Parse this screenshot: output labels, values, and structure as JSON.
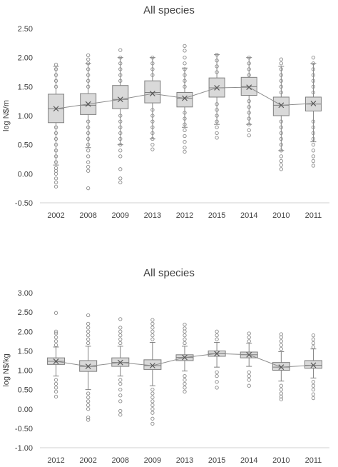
{
  "chart_data": [
    {
      "type": "box",
      "title": "All species",
      "ylabel": "log N$/m",
      "ylim": [
        -0.5,
        2.5
      ],
      "ytick_step": 0.5,
      "yticks": [
        "-0.50",
        "0.00",
        "0.50",
        "1.00",
        "1.50",
        "2.00",
        "2.50"
      ],
      "grid": false,
      "mean_line": true,
      "categories": [
        "2002",
        "2008",
        "2009",
        "2013",
        "2012",
        "2015",
        "2014",
        "2010",
        "2011"
      ],
      "boxes": [
        {
          "q1": 0.88,
          "median": 1.12,
          "q3": 1.37,
          "mean": 1.12,
          "whisker_low": 0.15,
          "whisker_high": 1.85,
          "outliers": [
            -0.22,
            -0.15,
            -0.08,
            0.0,
            0.05,
            0.1,
            0.2,
            0.3,
            0.4,
            0.5,
            0.6,
            0.7,
            0.8,
            1.5,
            1.6,
            1.7,
            1.8,
            1.88
          ]
        },
        {
          "q1": 1.02,
          "median": 1.18,
          "q3": 1.38,
          "mean": 1.2,
          "whisker_low": 0.45,
          "whisker_high": 1.9,
          "outliers": [
            -0.25,
            0.05,
            0.12,
            0.2,
            0.3,
            0.4,
            0.5,
            0.6,
            0.7,
            0.8,
            0.9,
            1.5,
            1.6,
            1.7,
            1.8,
            1.9,
            1.97,
            2.04
          ]
        },
        {
          "q1": 1.12,
          "median": 1.28,
          "q3": 1.52,
          "mean": 1.28,
          "whisker_low": 0.5,
          "whisker_high": 2.0,
          "outliers": [
            -0.15,
            -0.08,
            0.08,
            0.3,
            0.4,
            0.5,
            0.6,
            0.7,
            0.8,
            0.9,
            1.0,
            1.6,
            1.7,
            1.8,
            1.9,
            2.0,
            2.13
          ]
        },
        {
          "q1": 1.22,
          "median": 1.4,
          "q3": 1.6,
          "mean": 1.38,
          "whisker_low": 0.6,
          "whisker_high": 2.0,
          "outliers": [
            0.42,
            0.5,
            0.6,
            0.7,
            0.8,
            0.9,
            1.0,
            1.1,
            1.7,
            1.8,
            1.9,
            2.0
          ]
        },
        {
          "q1": 1.15,
          "median": 1.3,
          "q3": 1.4,
          "mean": 1.3,
          "whisker_low": 0.8,
          "whisker_high": 1.82,
          "outliers": [
            0.38,
            0.45,
            0.55,
            0.65,
            0.75,
            0.85,
            0.95,
            1.05,
            1.5,
            1.6,
            1.7,
            1.8,
            1.9,
            2.0,
            2.12,
            2.2
          ]
        },
        {
          "q1": 1.32,
          "median": 1.48,
          "q3": 1.65,
          "mean": 1.48,
          "whisker_low": 0.85,
          "whisker_high": 2.05,
          "outliers": [
            0.62,
            0.7,
            0.8,
            0.9,
            1.0,
            1.1,
            1.2,
            1.75,
            1.85,
            1.95,
            2.05
          ]
        },
        {
          "q1": 1.35,
          "median": 1.5,
          "q3": 1.66,
          "mean": 1.49,
          "whisker_low": 0.85,
          "whisker_high": 2.0,
          "outliers": [
            0.66,
            0.75,
            0.85,
            0.95,
            1.05,
            1.15,
            1.25,
            1.7,
            1.8,
            1.9,
            2.0
          ]
        },
        {
          "q1": 1.0,
          "median": 1.18,
          "q3": 1.32,
          "mean": 1.18,
          "whisker_low": 0.4,
          "whisker_high": 1.85,
          "outliers": [
            0.08,
            0.15,
            0.22,
            0.3,
            0.4,
            0.5,
            0.6,
            0.7,
            0.8,
            0.9,
            1.4,
            1.5,
            1.6,
            1.7,
            1.8,
            1.9,
            1.97
          ]
        },
        {
          "q1": 1.08,
          "median": 1.2,
          "q3": 1.32,
          "mean": 1.21,
          "whisker_low": 0.55,
          "whisker_high": 1.9,
          "outliers": [
            0.14,
            0.22,
            0.3,
            0.4,
            0.5,
            0.6,
            0.7,
            0.8,
            0.9,
            1.4,
            1.5,
            1.6,
            1.7,
            1.8,
            1.9,
            2.0
          ]
        }
      ]
    },
    {
      "type": "box",
      "title": "All species",
      "ylabel": "log N$/kg",
      "ylim": [
        -1.0,
        3.0
      ],
      "ytick_step": 0.5,
      "yticks": [
        "-1.00",
        "-0.50",
        "0.00",
        "0.50",
        "1.00",
        "1.50",
        "2.00",
        "2.50",
        "3.00"
      ],
      "grid": false,
      "mean_line": true,
      "categories": [
        "2012",
        "2002",
        "2008",
        "2009",
        "2013",
        "2015",
        "2014",
        "2010",
        "2011"
      ],
      "boxes": [
        {
          "q1": 1.15,
          "median": 1.23,
          "q3": 1.32,
          "mean": 1.23,
          "whisker_low": 0.85,
          "whisker_high": 1.6,
          "outliers": [
            0.32,
            0.45,
            0.55,
            0.65,
            0.75,
            1.65,
            1.75,
            1.85,
            1.95,
            2.0,
            2.48
          ]
        },
        {
          "q1": 0.97,
          "median": 1.1,
          "q3": 1.25,
          "mean": 1.1,
          "whisker_low": 0.5,
          "whisker_high": 1.62,
          "outliers": [
            -0.28,
            -0.22,
            0.0,
            0.1,
            0.2,
            0.3,
            0.4,
            1.7,
            1.8,
            1.9,
            2.0,
            2.1,
            2.2,
            2.42
          ]
        },
        {
          "q1": 1.1,
          "median": 1.2,
          "q3": 1.32,
          "mean": 1.2,
          "whisker_low": 0.85,
          "whisker_high": 1.62,
          "outliers": [
            -0.15,
            -0.05,
            0.2,
            0.35,
            0.5,
            0.65,
            0.75,
            1.7,
            1.8,
            1.9,
            2.0,
            2.1,
            2.32
          ]
        },
        {
          "q1": 1.02,
          "median": 1.12,
          "q3": 1.27,
          "mean": 1.12,
          "whisker_low": 0.6,
          "whisker_high": 1.72,
          "outliers": [
            -0.38,
            -0.25,
            -0.1,
            0.0,
            0.1,
            0.2,
            0.3,
            0.4,
            0.5,
            1.8,
            1.9,
            2.0,
            2.1,
            2.2,
            2.3
          ]
        },
        {
          "q1": 1.25,
          "median": 1.33,
          "q3": 1.4,
          "mean": 1.33,
          "whisker_low": 0.98,
          "whisker_high": 1.62,
          "outliers": [
            0.45,
            0.55,
            0.65,
            0.75,
            0.85,
            1.7,
            1.8,
            1.9,
            2.0,
            2.08,
            2.18
          ]
        },
        {
          "q1": 1.36,
          "median": 1.43,
          "q3": 1.5,
          "mean": 1.43,
          "whisker_low": 1.08,
          "whisker_high": 1.72,
          "outliers": [
            0.55,
            0.7,
            0.85,
            0.95,
            1.8,
            1.9,
            2.0
          ]
        },
        {
          "q1": 1.32,
          "median": 1.4,
          "q3": 1.47,
          "mean": 1.4,
          "whisker_low": 1.1,
          "whisker_high": 1.7,
          "outliers": [
            0.6,
            0.75,
            0.85,
            0.95,
            1.75,
            1.85,
            1.95
          ]
        },
        {
          "q1": 1.0,
          "median": 1.08,
          "q3": 1.2,
          "mean": 1.08,
          "whisker_low": 0.72,
          "whisker_high": 1.48,
          "outliers": [
            0.25,
            0.32,
            0.4,
            0.5,
            0.6,
            1.55,
            1.65,
            1.75,
            1.85,
            1.93
          ]
        },
        {
          "q1": 1.05,
          "median": 1.13,
          "q3": 1.25,
          "mean": 1.13,
          "whisker_low": 0.8,
          "whisker_high": 1.55,
          "outliers": [
            0.28,
            0.38,
            0.5,
            0.6,
            0.7,
            1.6,
            1.7,
            1.8,
            1.9
          ]
        }
      ]
    }
  ]
}
